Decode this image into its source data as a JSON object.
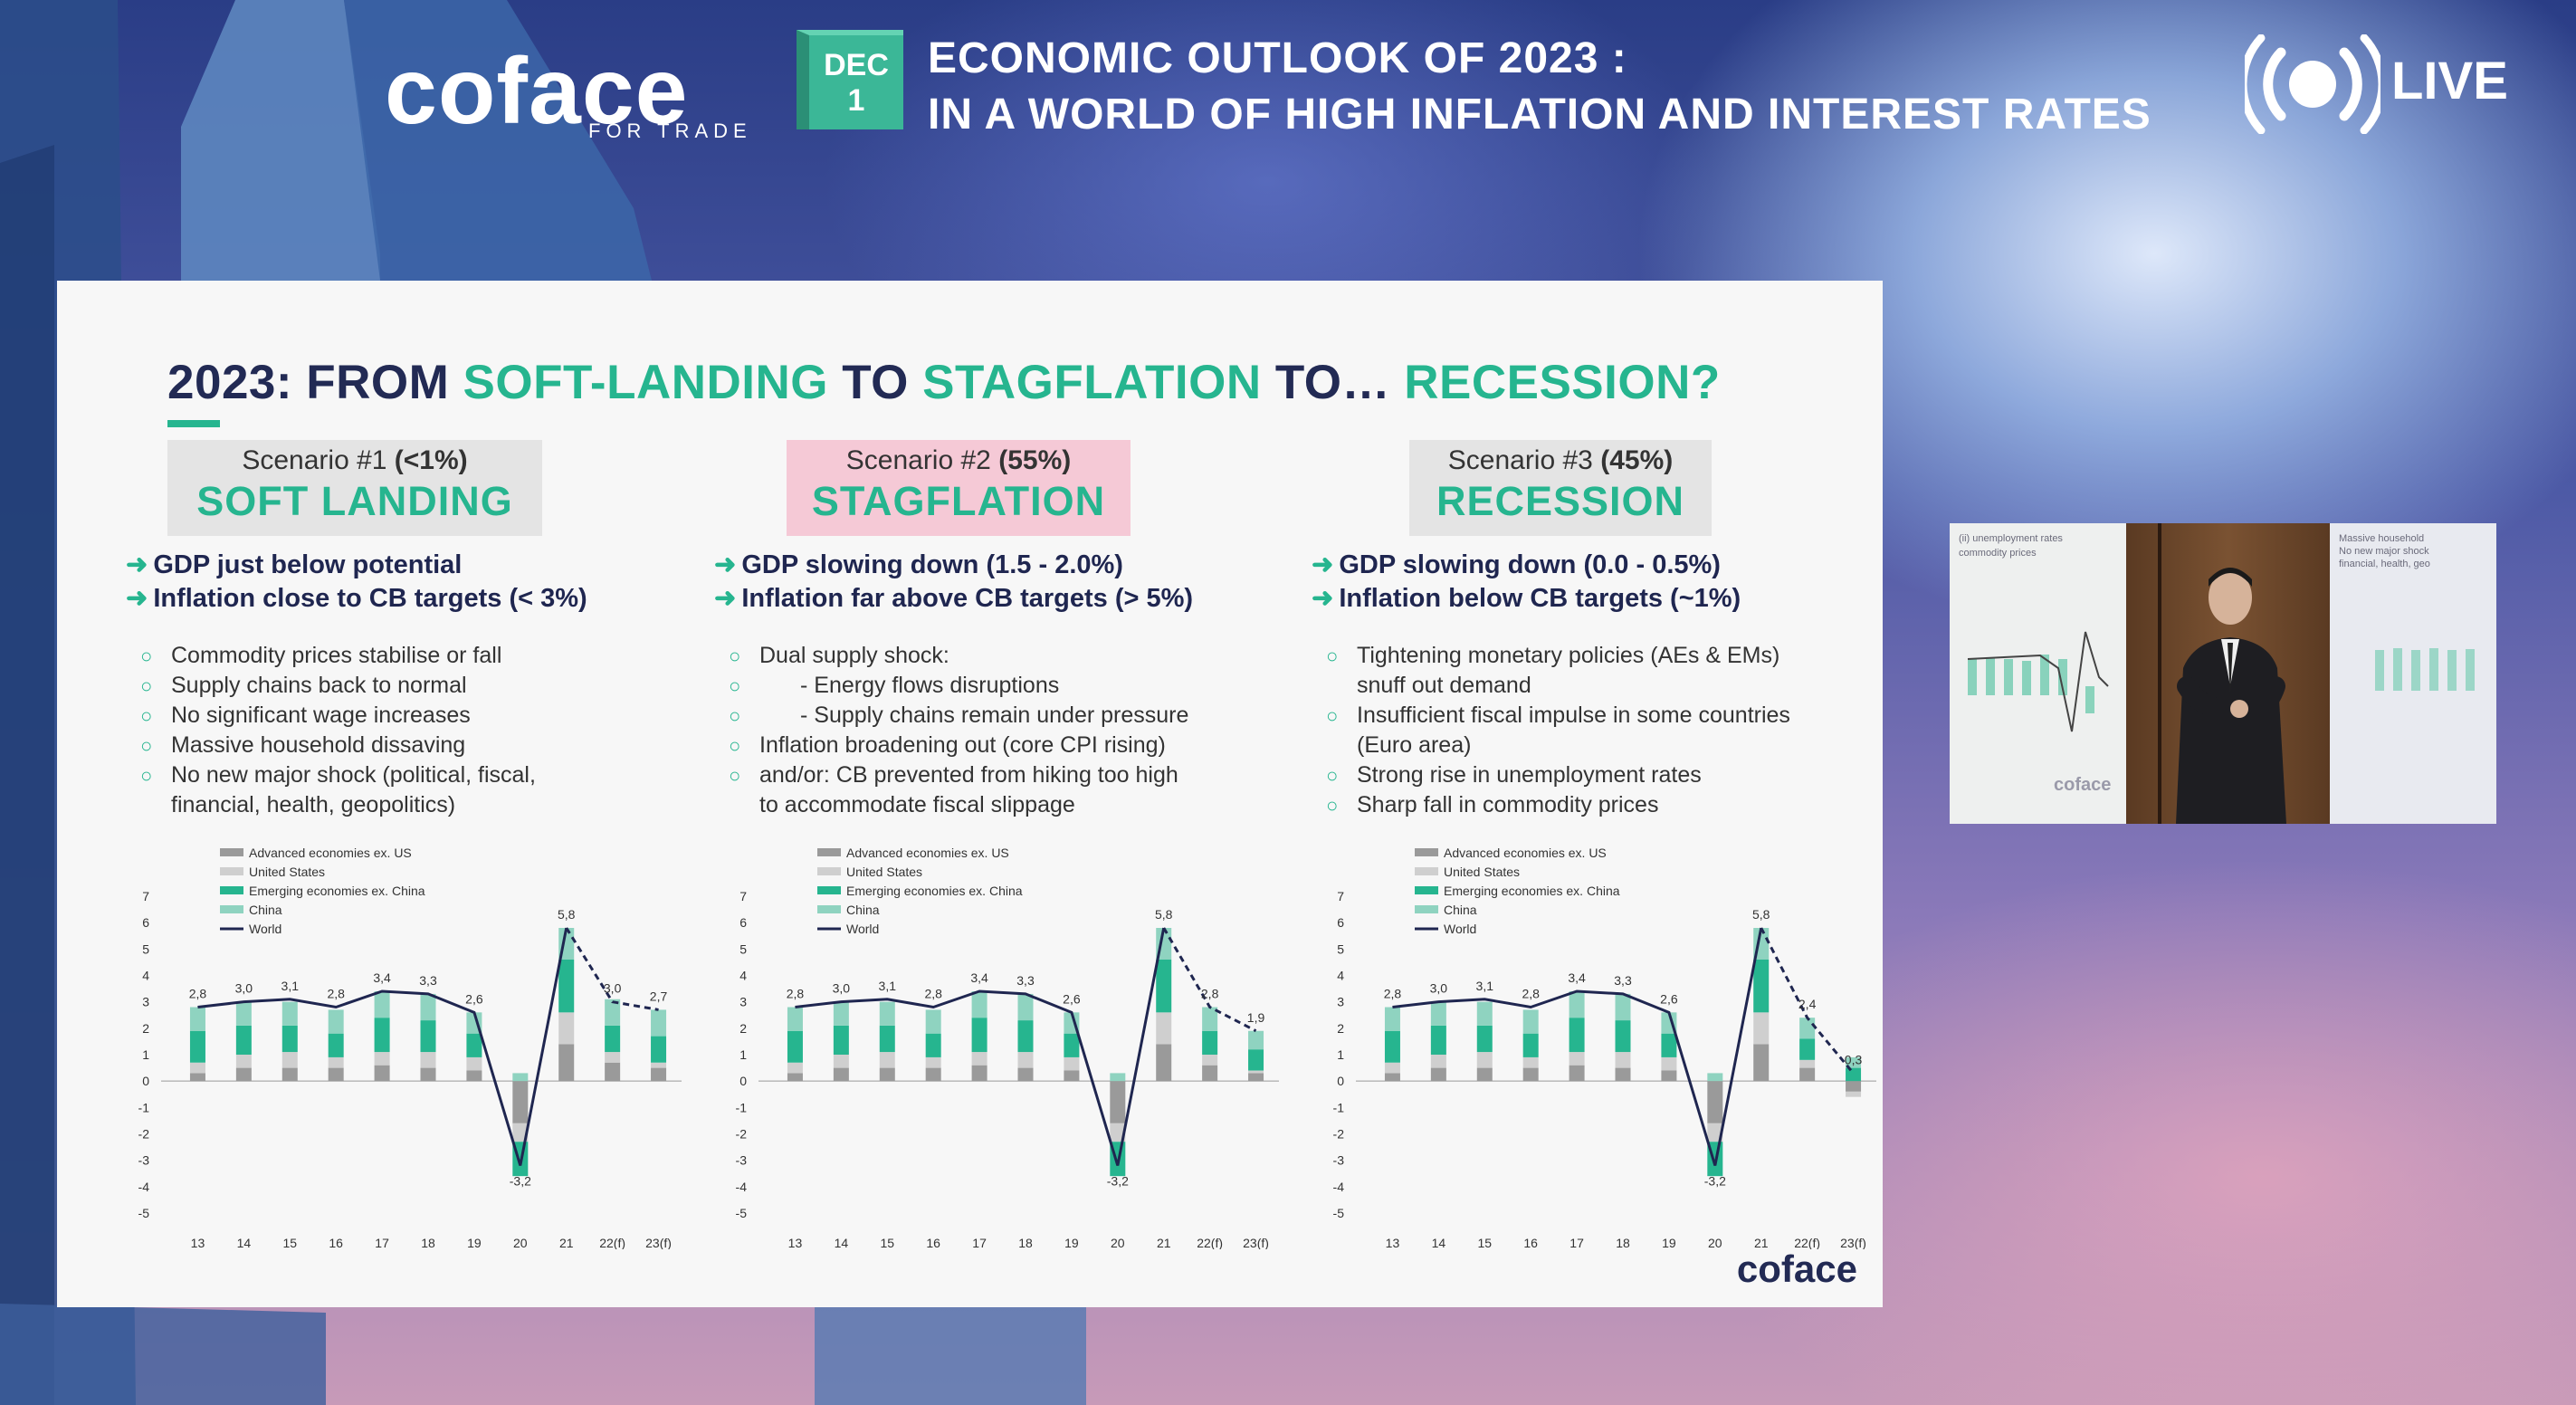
{
  "header": {
    "logo_text": "coface",
    "logo_tagline": "FOR TRADE",
    "date_month": "DEC",
    "date_day": "1",
    "title_line1": "ECONOMIC OUTLOOK OF 2023 :",
    "title_line2": "IN A WORLD OF HIGH INFLATION AND INTEREST RATES",
    "live_label": "LIVE",
    "live_icon": "broadcast-icon"
  },
  "slide": {
    "title_parts": [
      "2023: FROM ",
      "SOFT-LANDING",
      " TO ",
      "STAGFLATION",
      " TO… ",
      "RECESSION?"
    ],
    "footer_logo": "coface",
    "colors": {
      "accent": "#26b58f",
      "navy": "#1f2650",
      "adv": "#9a9a9a",
      "us": "#cfcfcf",
      "em": "#26b58f",
      "china": "#8fd3c0",
      "world": "#1f2650"
    },
    "scenarios": [
      {
        "label_prefix": "Scenario #1 ",
        "prob": "(<1%)",
        "name": "SOFT LANDING",
        "box_color": "#e4e4e4",
        "key_points": [
          "GDP just below potential",
          "Inflation close to CB targets (< 3%)"
        ],
        "bullets": [
          {
            "text": "Commodity  prices stabilise  or fall",
            "sub": false,
            "marker": true
          },
          {
            "text": "Supply chains back to normal",
            "sub": false,
            "marker": true
          },
          {
            "text": "No significant wage increases",
            "sub": false,
            "marker": true
          },
          {
            "text": "Massive household dissaving",
            "sub": false,
            "marker": true
          },
          {
            "text": "No new major shock (political, fiscal,",
            "sub": false,
            "marker": true
          },
          {
            "text": "financial, health,  geopolitics)",
            "sub": false,
            "marker": false
          }
        ]
      },
      {
        "label_prefix": "Scenario #2 ",
        "prob": "(55%)",
        "name": "STAGFLATION",
        "box_color": "#f5c9d6",
        "key_points": [
          "GDP slowing down (1.5 - 2.0%)",
          "Inflation far above CB targets (> 5%)"
        ],
        "bullets": [
          {
            "text": "Dual supply shock:",
            "sub": false,
            "marker": true
          },
          {
            "text": "- Energy flows  disruptions",
            "sub": true,
            "marker": true
          },
          {
            "text": "- Supply chains remain under pressure",
            "sub": true,
            "marker": true
          },
          {
            "text": "Inflation broadening out (core CPI rising)",
            "sub": false,
            "marker": true
          },
          {
            "text": "and/or:  CB prevented  from hiking too high",
            "sub": false,
            "marker": true
          },
          {
            "text": "to accommodate  fiscal slippage",
            "sub": false,
            "marker": false
          }
        ]
      },
      {
        "label_prefix": "Scenario #3 ",
        "prob": "(45%)",
        "name": "RECESSION",
        "box_color": "#e4e4e4",
        "key_points": [
          "GDP slowing down (0.0 - 0.5%)",
          "Inflation below CB targets (~1%)"
        ],
        "bullets": [
          {
            "text": "Tightening monetary  policies (AEs & EMs)",
            "sub": false,
            "marker": true
          },
          {
            "text": "snuff out demand",
            "sub": false,
            "marker": false
          },
          {
            "text": "Insufficient  fiscal impulse  in some countries",
            "sub": false,
            "marker": true
          },
          {
            "text": "(Euro area)",
            "sub": false,
            "marker": false
          },
          {
            "text": "Strong rise in unemployment rates",
            "sub": false,
            "marker": true
          },
          {
            "text": "Sharp fall in commodity  prices",
            "sub": false,
            "marker": true
          }
        ]
      }
    ]
  },
  "chart_data": [
    {
      "type": "bar",
      "stacked": true,
      "categories": [
        "13",
        "14",
        "15",
        "16",
        "17",
        "18",
        "19",
        "20",
        "21",
        "22(f)",
        "23(f)"
      ],
      "ylim": [
        -5,
        7
      ],
      "yticks": [
        7,
        6,
        5,
        4,
        3,
        2,
        1,
        0,
        -1,
        -2,
        -3,
        -4,
        -5
      ],
      "legend": [
        "Advanced economies ex. US",
        "United States",
        "Emerging economies ex. China",
        "China",
        "World"
      ],
      "series": [
        {
          "name": "Advanced economies ex. US",
          "values": [
            0.3,
            0.5,
            0.5,
            0.5,
            0.6,
            0.5,
            0.4,
            -1.6,
            1.4,
            0.7,
            0.5
          ]
        },
        {
          "name": "United States",
          "values": [
            0.4,
            0.5,
            0.6,
            0.4,
            0.5,
            0.6,
            0.5,
            -0.7,
            1.2,
            0.4,
            0.2
          ]
        },
        {
          "name": "Emerging economies ex. China",
          "values": [
            1.2,
            1.1,
            1.0,
            0.9,
            1.3,
            1.2,
            0.9,
            -1.3,
            2.0,
            1.0,
            1.0
          ]
        },
        {
          "name": "China",
          "values": [
            0.9,
            0.9,
            0.9,
            0.9,
            1.0,
            1.0,
            0.8,
            0.3,
            1.2,
            1.0,
            1.0
          ]
        },
        {
          "name": "World",
          "values": [
            2.8,
            3.0,
            3.1,
            2.8,
            3.4,
            3.3,
            2.6,
            -3.2,
            5.8,
            3.0,
            2.7
          ],
          "type": "line",
          "forecast_from": "22(f)"
        }
      ],
      "data_labels": [
        "2,8",
        "3,0",
        "3,1",
        "2,8",
        "3,4",
        "3,3",
        "2,6",
        "-3,2",
        "5,8",
        "3,0",
        "2,7"
      ]
    },
    {
      "type": "bar",
      "stacked": true,
      "categories": [
        "13",
        "14",
        "15",
        "16",
        "17",
        "18",
        "19",
        "20",
        "21",
        "22(f)",
        "23(f)"
      ],
      "ylim": [
        -5,
        7
      ],
      "yticks": [
        7,
        6,
        5,
        4,
        3,
        2,
        1,
        0,
        -1,
        -2,
        -3,
        -4,
        -5
      ],
      "legend": [
        "Advanced economies ex. US",
        "United States",
        "Emerging economies ex. China",
        "China",
        "World"
      ],
      "series": [
        {
          "name": "Advanced economies ex. US",
          "values": [
            0.3,
            0.5,
            0.5,
            0.5,
            0.6,
            0.5,
            0.4,
            -1.6,
            1.4,
            0.6,
            0.3
          ]
        },
        {
          "name": "United States",
          "values": [
            0.4,
            0.5,
            0.6,
            0.4,
            0.5,
            0.6,
            0.5,
            -0.7,
            1.2,
            0.4,
            0.1
          ]
        },
        {
          "name": "Emerging economies ex. China",
          "values": [
            1.2,
            1.1,
            1.0,
            0.9,
            1.3,
            1.2,
            0.9,
            -1.3,
            2.0,
            0.9,
            0.8
          ]
        },
        {
          "name": "China",
          "values": [
            0.9,
            0.9,
            0.9,
            0.9,
            1.0,
            1.0,
            0.8,
            0.3,
            1.2,
            0.9,
            0.7
          ]
        },
        {
          "name": "World",
          "values": [
            2.8,
            3.0,
            3.1,
            2.8,
            3.4,
            3.3,
            2.6,
            -3.2,
            5.8,
            2.8,
            1.9
          ],
          "type": "line",
          "forecast_from": "22(f)"
        }
      ],
      "data_labels": [
        "2,8",
        "3,0",
        "3,1",
        "2,8",
        "3,4",
        "3,3",
        "2,6",
        "-3,2",
        "5,8",
        "2,8",
        "1,9"
      ]
    },
    {
      "type": "bar",
      "stacked": true,
      "categories": [
        "13",
        "14",
        "15",
        "16",
        "17",
        "18",
        "19",
        "20",
        "21",
        "22(f)",
        "23(f)"
      ],
      "ylim": [
        -5,
        7
      ],
      "yticks": [
        7,
        6,
        5,
        4,
        3,
        2,
        1,
        0,
        -1,
        -2,
        -3,
        -4,
        -5
      ],
      "legend": [
        "Advanced economies ex. US",
        "United States",
        "Emerging economies ex. China",
        "China",
        "World"
      ],
      "series": [
        {
          "name": "Advanced economies ex. US",
          "values": [
            0.3,
            0.5,
            0.5,
            0.5,
            0.6,
            0.5,
            0.4,
            -1.6,
            1.4,
            0.5,
            -0.4
          ]
        },
        {
          "name": "United States",
          "values": [
            0.4,
            0.5,
            0.6,
            0.4,
            0.5,
            0.6,
            0.5,
            -0.7,
            1.2,
            0.3,
            -0.2
          ]
        },
        {
          "name": "Emerging economies ex. China",
          "values": [
            1.2,
            1.1,
            1.0,
            0.9,
            1.3,
            1.2,
            0.9,
            -1.3,
            2.0,
            0.8,
            0.5
          ]
        },
        {
          "name": "China",
          "values": [
            0.9,
            0.9,
            0.9,
            0.9,
            1.0,
            1.0,
            0.8,
            0.3,
            1.2,
            0.8,
            0.4
          ]
        },
        {
          "name": "World",
          "values": [
            2.8,
            3.0,
            3.1,
            2.8,
            3.4,
            3.3,
            2.6,
            -3.2,
            5.8,
            2.4,
            0.3
          ],
          "type": "line",
          "forecast_from": "22(f)"
        }
      ],
      "data_labels": [
        "2,8",
        "3,0",
        "3,1",
        "2,8",
        "3,4",
        "3,3",
        "2,6",
        "-3,2",
        "5,8",
        "2,4",
        "0,3"
      ]
    }
  ],
  "video_inset": {
    "left_screen_text": [
      "(ii) unemployment rates",
      "commodity prices"
    ],
    "right_screen_text": [
      "Massive household",
      "No new major shock",
      "financial, health, geo"
    ],
    "left_screen_logo": "coface"
  }
}
